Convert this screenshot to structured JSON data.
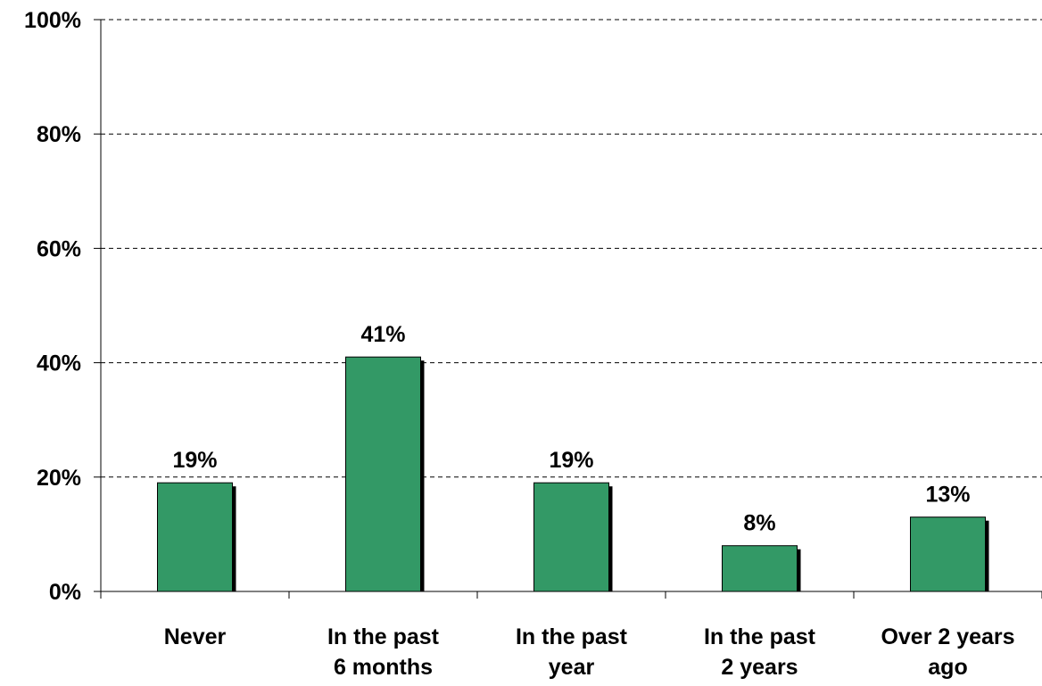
{
  "chart_data": {
    "type": "bar",
    "title": "",
    "xlabel": "",
    "ylabel": "",
    "categories": [
      [
        "Never"
      ],
      [
        "In the past",
        "6 months"
      ],
      [
        "In the past",
        "year"
      ],
      [
        "In the past",
        "2 years"
      ],
      [
        "Over 2 years",
        "ago"
      ]
    ],
    "values": [
      19,
      41,
      19,
      8,
      13
    ],
    "data_labels": [
      "19%",
      "41%",
      "19%",
      "8%",
      "13%"
    ],
    "ylim": [
      0,
      100
    ],
    "yticks": [
      0,
      20,
      40,
      60,
      80,
      100
    ],
    "ytick_labels": [
      "0%",
      "20%",
      "40%",
      "60%",
      "80%",
      "100%"
    ],
    "grid": "horizontal dashed",
    "legend": "none",
    "colors": {
      "bar": "#339966",
      "shadow": "#000000",
      "axis": "#000000",
      "grid": "#000000"
    }
  }
}
